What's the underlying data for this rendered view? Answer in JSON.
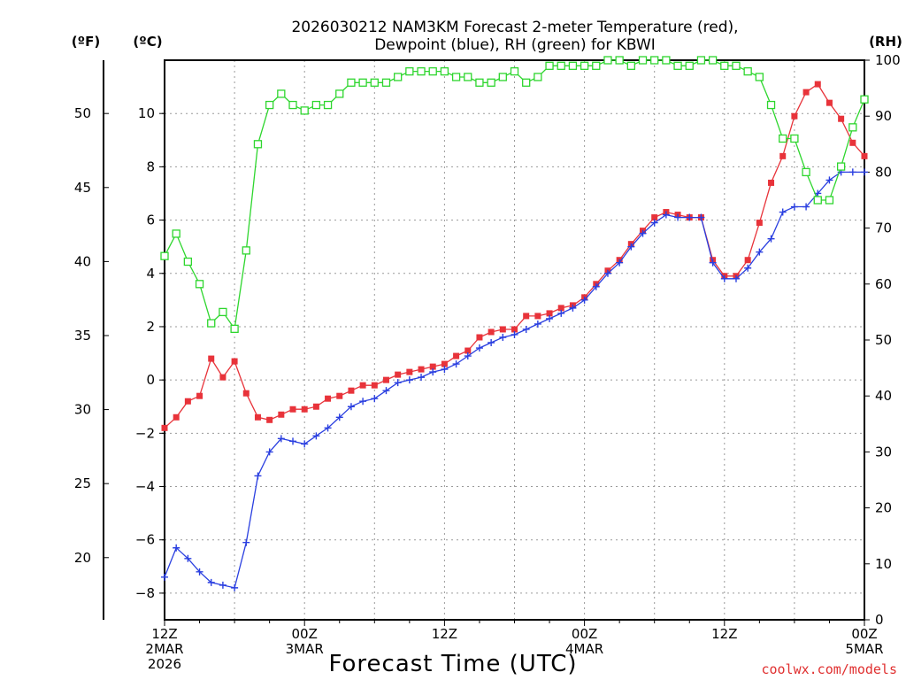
{
  "chart_data": {
    "type": "line",
    "title_line1": "2026030212 NAM3KM Forecast 2-meter Temperature (red),",
    "title_line2": "Dewpoint (blue), RH (green) for KBWI",
    "xlabel": "Forecast Time (UTC)",
    "credit": "coolwx.com/models",
    "unit_f": "(ºF)",
    "unit_c": "(ºC)",
    "unit_rh": "(RH)",
    "colors": {
      "temperature": "#e8333a",
      "dewpoint": "#2a3fe0",
      "rh": "#2ed62e",
      "grid": "#9a9a9a",
      "credit": "#e03030"
    },
    "x_range_hours": [
      0,
      60
    ],
    "y_range_c": [
      -9,
      12
    ],
    "y_range_rh": [
      0,
      100
    ],
    "x_ticks": [
      {
        "hour": 0,
        "line1": "12Z",
        "line2": "2MAR",
        "line3": "2026"
      },
      {
        "hour": 12,
        "line1": "00Z",
        "line2": "3MAR",
        "line3": ""
      },
      {
        "hour": 24,
        "line1": "12Z",
        "line2": "",
        "line3": ""
      },
      {
        "hour": 36,
        "line1": "00Z",
        "line2": "4MAR",
        "line3": ""
      },
      {
        "hour": 48,
        "line1": "12Z",
        "line2": "",
        "line3": ""
      },
      {
        "hour": 60,
        "line1": "00Z",
        "line2": "5MAR",
        "line3": ""
      }
    ],
    "y_ticks_c": [
      -8,
      -6,
      -4,
      -2,
      0,
      2,
      4,
      6,
      8,
      10
    ],
    "y_ticks_f": [
      20,
      25,
      30,
      35,
      40,
      45,
      50
    ],
    "y_ticks_rh": [
      0,
      10,
      20,
      30,
      40,
      50,
      60,
      70,
      80,
      90,
      100
    ],
    "series": [
      {
        "name": "Temperature",
        "units": "C",
        "color": "#e8333a",
        "marker": "filled-square",
        "points": [
          [
            0,
            -1.8
          ],
          [
            1,
            -1.4
          ],
          [
            2,
            -0.8
          ],
          [
            3,
            -0.6
          ],
          [
            4,
            0.8
          ],
          [
            5,
            0.1
          ],
          [
            6,
            0.7
          ],
          [
            7,
            -0.5
          ],
          [
            8,
            -1.4
          ],
          [
            9,
            -1.5
          ],
          [
            10,
            -1.3
          ],
          [
            11,
            -1.1
          ],
          [
            12,
            -1.1
          ],
          [
            13,
            -1.0
          ],
          [
            14,
            -0.7
          ],
          [
            15,
            -0.6
          ],
          [
            16,
            -0.4
          ],
          [
            17,
            -0.2
          ],
          [
            18,
            -0.2
          ],
          [
            19,
            0.0
          ],
          [
            20,
            0.2
          ],
          [
            21,
            0.3
          ],
          [
            22,
            0.4
          ],
          [
            23,
            0.5
          ],
          [
            24,
            0.6
          ],
          [
            25,
            0.9
          ],
          [
            26,
            1.1
          ],
          [
            27,
            1.6
          ],
          [
            28,
            1.8
          ],
          [
            29,
            1.9
          ],
          [
            30,
            1.9
          ],
          [
            31,
            2.4
          ],
          [
            32,
            2.4
          ],
          [
            33,
            2.5
          ],
          [
            34,
            2.7
          ],
          [
            35,
            2.8
          ],
          [
            36,
            3.1
          ],
          [
            37,
            3.6
          ],
          [
            38,
            4.1
          ],
          [
            39,
            4.5
          ],
          [
            40,
            5.1
          ],
          [
            41,
            5.6
          ],
          [
            42,
            6.1
          ],
          [
            43,
            6.3
          ],
          [
            44,
            6.2
          ],
          [
            45,
            6.1
          ],
          [
            46,
            6.1
          ],
          [
            47,
            4.5
          ],
          [
            48,
            3.9
          ],
          [
            49,
            3.9
          ],
          [
            50,
            4.5
          ],
          [
            51,
            5.9
          ],
          [
            52,
            7.4
          ],
          [
            53,
            8.4
          ],
          [
            54,
            9.9
          ],
          [
            55,
            10.8
          ],
          [
            56,
            11.1
          ],
          [
            57,
            10.4
          ],
          [
            58,
            9.8
          ],
          [
            59,
            8.9
          ],
          [
            60,
            8.4
          ]
        ]
      },
      {
        "name": "Dewpoint",
        "units": "C",
        "color": "#2a3fe0",
        "marker": "plus",
        "points": [
          [
            0,
            -7.4
          ],
          [
            1,
            -6.3
          ],
          [
            2,
            -6.7
          ],
          [
            3,
            -7.2
          ],
          [
            4,
            -7.6
          ],
          [
            5,
            -7.7
          ],
          [
            6,
            -7.8
          ],
          [
            7,
            -6.1
          ],
          [
            8,
            -3.6
          ],
          [
            9,
            -2.7
          ],
          [
            10,
            -2.2
          ],
          [
            11,
            -2.3
          ],
          [
            12,
            -2.4
          ],
          [
            13,
            -2.1
          ],
          [
            14,
            -1.8
          ],
          [
            15,
            -1.4
          ],
          [
            16,
            -1.0
          ],
          [
            17,
            -0.8
          ],
          [
            18,
            -0.7
          ],
          [
            19,
            -0.4
          ],
          [
            20,
            -0.1
          ],
          [
            21,
            0.0
          ],
          [
            22,
            0.1
          ],
          [
            23,
            0.3
          ],
          [
            24,
            0.4
          ],
          [
            25,
            0.6
          ],
          [
            26,
            0.9
          ],
          [
            27,
            1.2
          ],
          [
            28,
            1.4
          ],
          [
            29,
            1.6
          ],
          [
            30,
            1.7
          ],
          [
            31,
            1.9
          ],
          [
            32,
            2.1
          ],
          [
            33,
            2.3
          ],
          [
            34,
            2.5
          ],
          [
            35,
            2.7
          ],
          [
            36,
            3.0
          ],
          [
            37,
            3.5
          ],
          [
            38,
            4.0
          ],
          [
            39,
            4.4
          ],
          [
            40,
            5.0
          ],
          [
            41,
            5.5
          ],
          [
            42,
            5.9
          ],
          [
            43,
            6.2
          ],
          [
            44,
            6.1
          ],
          [
            45,
            6.1
          ],
          [
            46,
            6.1
          ],
          [
            47,
            4.4
          ],
          [
            48,
            3.8
          ],
          [
            49,
            3.8
          ],
          [
            50,
            4.2
          ],
          [
            51,
            4.8
          ],
          [
            52,
            5.3
          ],
          [
            53,
            6.3
          ],
          [
            54,
            6.5
          ],
          [
            55,
            6.5
          ],
          [
            56,
            7.0
          ],
          [
            57,
            7.5
          ],
          [
            58,
            7.8
          ],
          [
            59,
            7.8
          ],
          [
            60,
            7.8
          ]
        ]
      },
      {
        "name": "RH",
        "units": "%",
        "color": "#2ed62e",
        "marker": "open-square",
        "points": [
          [
            0,
            65
          ],
          [
            1,
            69
          ],
          [
            2,
            64
          ],
          [
            3,
            60
          ],
          [
            4,
            53
          ],
          [
            5,
            55
          ],
          [
            6,
            52
          ],
          [
            7,
            66
          ],
          [
            8,
            85
          ],
          [
            9,
            92
          ],
          [
            10,
            94
          ],
          [
            11,
            92
          ],
          [
            12,
            91
          ],
          [
            13,
            92
          ],
          [
            14,
            92
          ],
          [
            15,
            94
          ],
          [
            16,
            96
          ],
          [
            17,
            96
          ],
          [
            18,
            96
          ],
          [
            19,
            96
          ],
          [
            20,
            97
          ],
          [
            21,
            98
          ],
          [
            22,
            98
          ],
          [
            23,
            98
          ],
          [
            24,
            98
          ],
          [
            25,
            97
          ],
          [
            26,
            97
          ],
          [
            27,
            96
          ],
          [
            28,
            96
          ],
          [
            29,
            97
          ],
          [
            30,
            98
          ],
          [
            31,
            96
          ],
          [
            32,
            97
          ],
          [
            33,
            99
          ],
          [
            34,
            99
          ],
          [
            35,
            99
          ],
          [
            36,
            99
          ],
          [
            37,
            99
          ],
          [
            38,
            100
          ],
          [
            39,
            100
          ],
          [
            40,
            99
          ],
          [
            41,
            100
          ],
          [
            42,
            100
          ],
          [
            43,
            100
          ],
          [
            44,
            99
          ],
          [
            45,
            99
          ],
          [
            46,
            100
          ],
          [
            47,
            100
          ],
          [
            48,
            99
          ],
          [
            49,
            99
          ],
          [
            50,
            98
          ],
          [
            51,
            97
          ],
          [
            52,
            92
          ],
          [
            53,
            86
          ],
          [
            54,
            86
          ],
          [
            55,
            80
          ],
          [
            56,
            75
          ],
          [
            57,
            75
          ],
          [
            58,
            81
          ],
          [
            59,
            88
          ],
          [
            60,
            93
          ]
        ]
      }
    ]
  }
}
